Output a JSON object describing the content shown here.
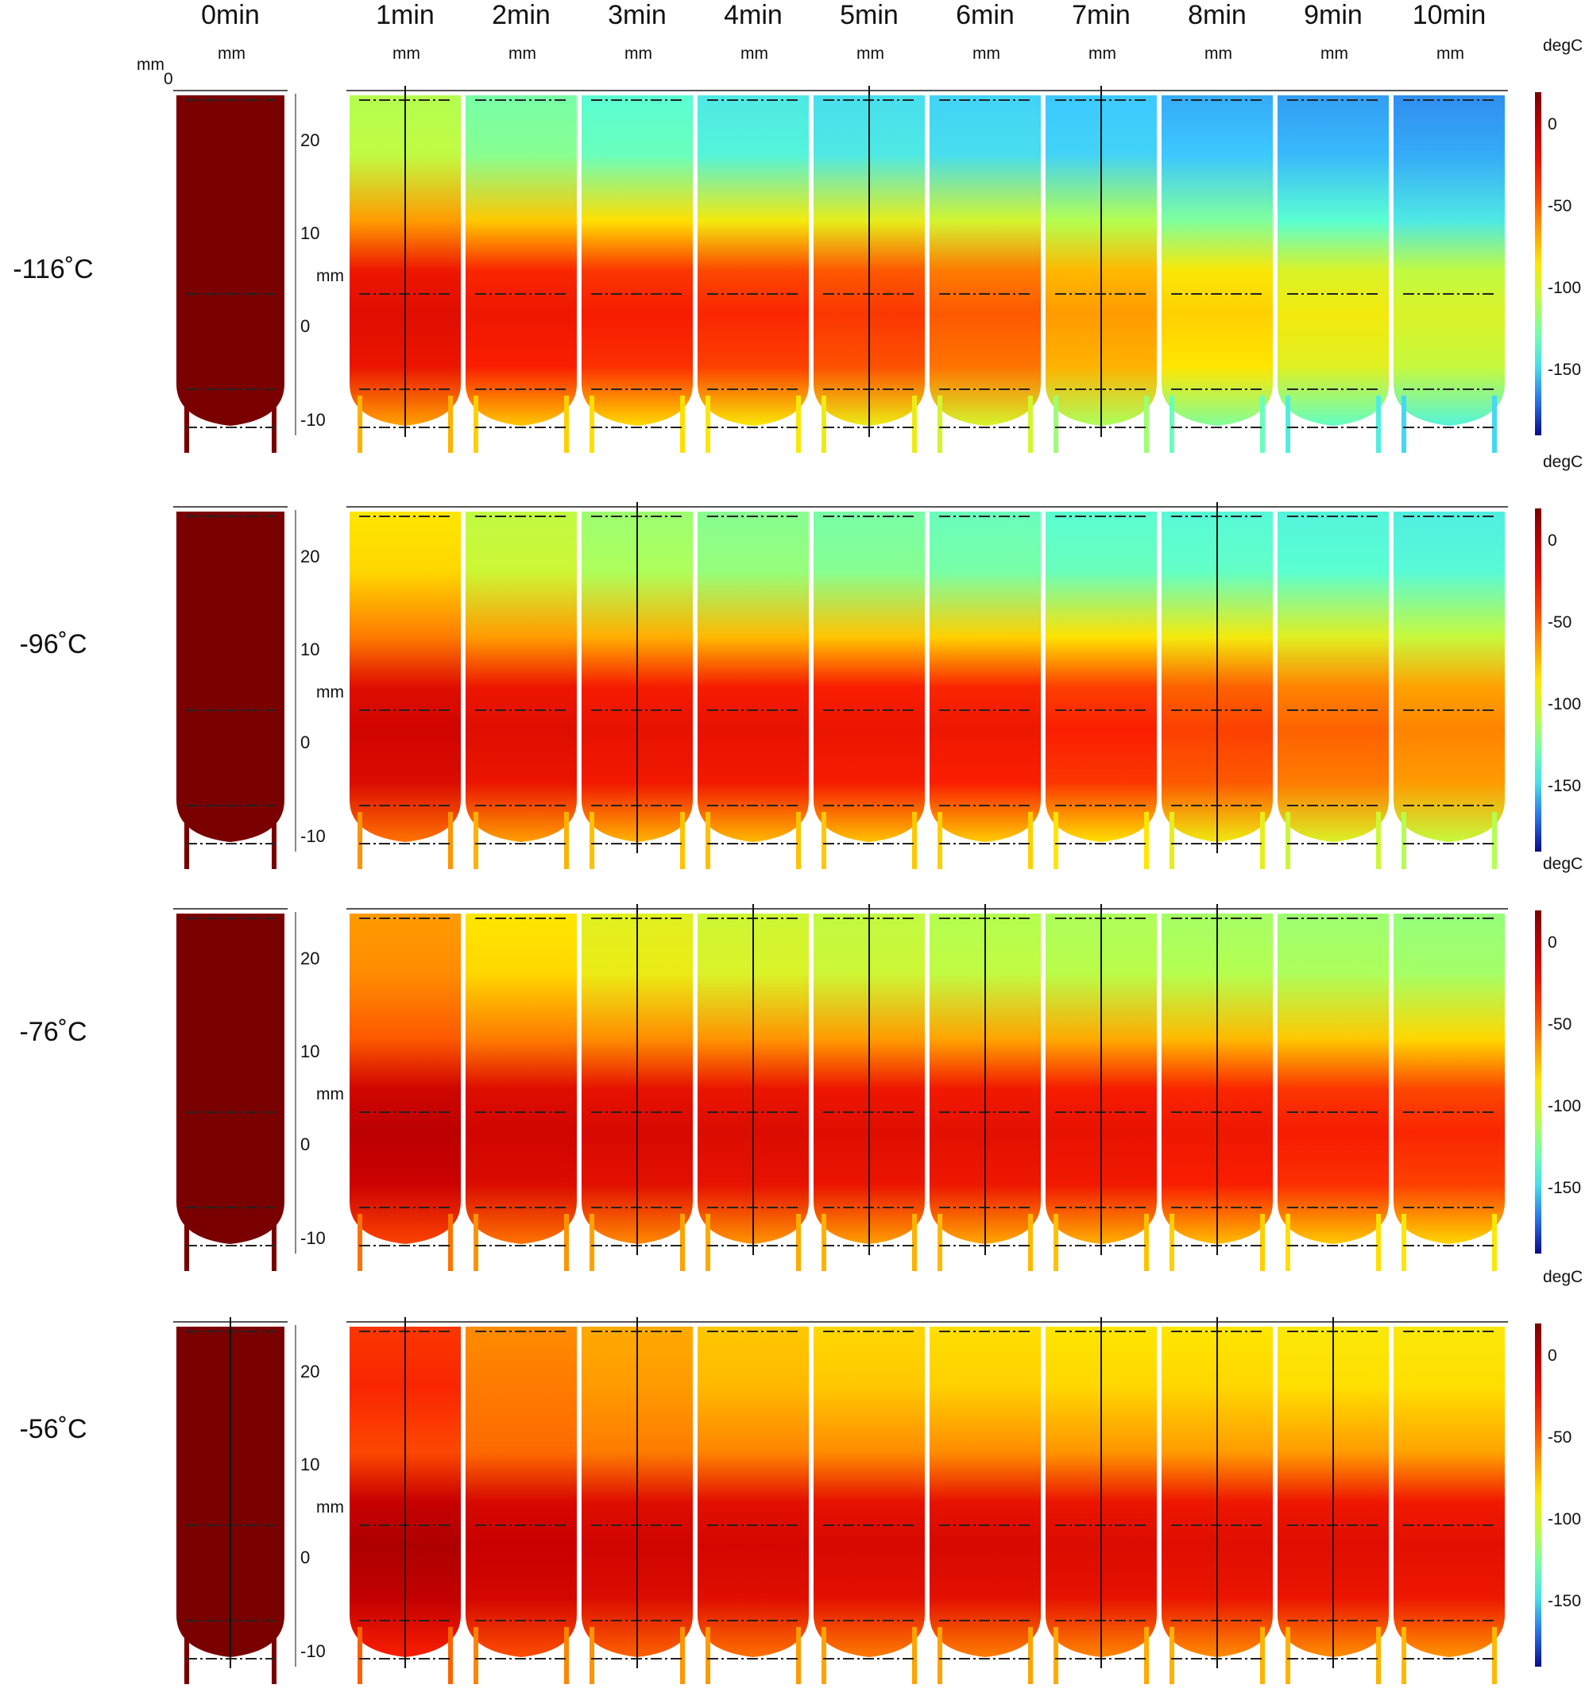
{
  "columns": [
    "0min",
    "1min",
    "2min",
    "3min",
    "4min",
    "5min",
    "6min",
    "7min",
    "8min",
    "9min",
    "10min"
  ],
  "rows": [
    {
      "label": "-116˚C",
      "top_state": [
        0,
        0.62,
        0.7,
        0.74,
        0.78,
        0.8,
        0.82,
        0.84,
        0.86,
        0.87,
        0.88
      ],
      "core_state": [
        0,
        0.18,
        0.22,
        0.24,
        0.26,
        0.28,
        0.32,
        0.4,
        0.47,
        0.52,
        0.56
      ],
      "probe": [
        false,
        true,
        false,
        false,
        false,
        true,
        false,
        true,
        false,
        false,
        false
      ]
    },
    {
      "label": "-96˚C",
      "top_state": [
        0,
        0.5,
        0.6,
        0.65,
        0.68,
        0.7,
        0.72,
        0.74,
        0.75,
        0.76,
        0.77
      ],
      "core_state": [
        0,
        0.14,
        0.18,
        0.2,
        0.2,
        0.21,
        0.22,
        0.25,
        0.29,
        0.33,
        0.37
      ],
      "probe": [
        false,
        false,
        false,
        true,
        false,
        false,
        false,
        false,
        true,
        false,
        false
      ]
    },
    {
      "label": "-76˚C",
      "top_state": [
        0,
        0.4,
        0.5,
        0.55,
        0.58,
        0.6,
        0.62,
        0.63,
        0.64,
        0.65,
        0.66
      ],
      "core_state": [
        0,
        0.1,
        0.14,
        0.16,
        0.17,
        0.18,
        0.19,
        0.2,
        0.22,
        0.24,
        0.26
      ],
      "probe": [
        false,
        false,
        false,
        true,
        true,
        true,
        true,
        true,
        true,
        false,
        false
      ]
    },
    {
      "label": "-56˚C",
      "top_state": [
        0,
        0.28,
        0.38,
        0.42,
        0.46,
        0.48,
        0.49,
        0.5,
        0.5,
        0.51,
        0.51
      ],
      "core_state": [
        0,
        0.08,
        0.12,
        0.14,
        0.15,
        0.16,
        0.16,
        0.17,
        0.18,
        0.18,
        0.19
      ],
      "probe": [
        true,
        true,
        false,
        true,
        false,
        false,
        false,
        true,
        true,
        true,
        false
      ]
    }
  ],
  "axes": {
    "mm_label": "mm",
    "y_ticks": [
      "20",
      "10",
      "0",
      "-10"
    ],
    "zero_label": "0"
  },
  "colorbar": {
    "unit": "degC",
    "ticks": [
      "0",
      "-50",
      "-100",
      "-150"
    ],
    "range": [
      -190,
      20
    ]
  },
  "colors": {
    "cold": "#0a0a8c",
    "hot": "#7a0000",
    "frame": "#222222"
  }
}
